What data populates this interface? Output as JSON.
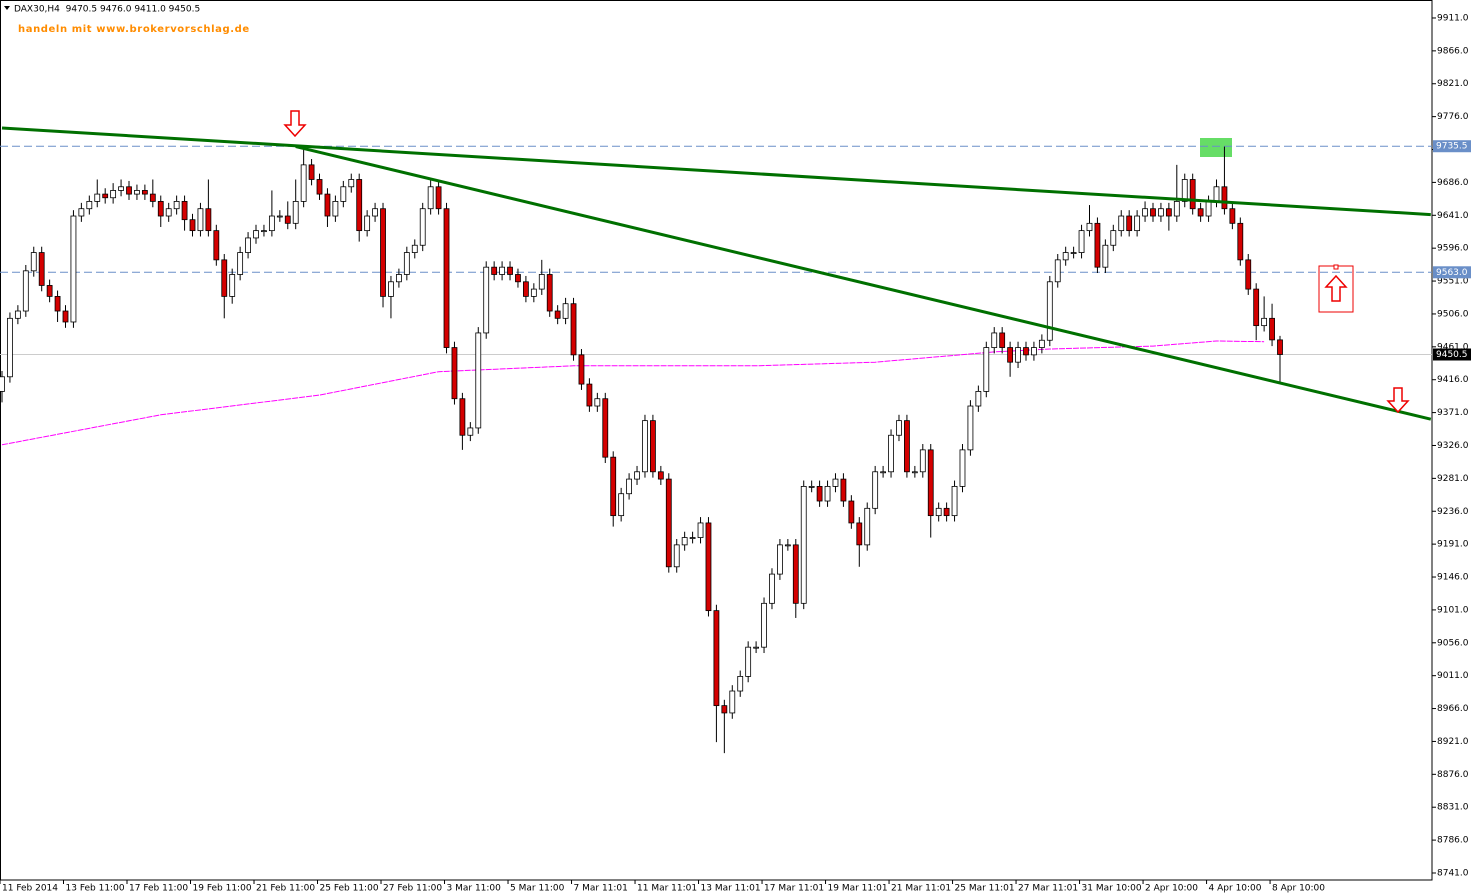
{
  "chart_data": {
    "type": "candlestick",
    "header": "DAX30,H4  9470.5 9476.0 9411.0 9450.5",
    "watermark": "handeln mit www.brokervorschlag.de",
    "up_color": "#ffffff",
    "down_color": "#d40000",
    "ylim": [
      8731.4,
      9935.6
    ],
    "yticks": [
      {
        "value": 9911,
        "label": "9911.0"
      },
      {
        "value": 9866,
        "label": "9866.0"
      },
      {
        "value": 9821,
        "label": "9821.0"
      },
      {
        "value": 9776,
        "label": "9776.0"
      },
      {
        "value": 9731,
        "label": "9731.0"
      },
      {
        "value": 9686,
        "label": "9686.0"
      },
      {
        "value": 9641,
        "label": "9641.0"
      },
      {
        "value": 9596,
        "label": "9596.0"
      },
      {
        "value": 9551,
        "label": "9551.0"
      },
      {
        "value": 9506,
        "label": "9506.0"
      },
      {
        "value": 9461,
        "label": "9461.0"
      },
      {
        "value": 9416,
        "label": "9416.0"
      },
      {
        "value": 9371,
        "label": "9371.0"
      },
      {
        "value": 9326,
        "label": "9326.0"
      },
      {
        "value": 9281,
        "label": "9281.0"
      },
      {
        "value": 9236,
        "label": "9236.0"
      },
      {
        "value": 9191,
        "label": "9191.0"
      },
      {
        "value": 9146,
        "label": "9146.0"
      },
      {
        "value": 9101,
        "label": "9101.0"
      },
      {
        "value": 9056,
        "label": "9056.0"
      },
      {
        "value": 9011,
        "label": "9011.0"
      },
      {
        "value": 8966,
        "label": "8966.0"
      },
      {
        "value": 8921,
        "label": "8921.0"
      },
      {
        "value": 8876,
        "label": "8876.0"
      },
      {
        "value": 8831,
        "label": "8831.0"
      },
      {
        "value": 8786,
        "label": "8786.0"
      },
      {
        "value": 8741,
        "label": "8741.0"
      }
    ],
    "categories": [
      "11 Feb 2014",
      null,
      null,
      null,
      null,
      null,
      null,
      null,
      "13 Feb 11:00",
      null,
      null,
      null,
      null,
      null,
      null,
      null,
      "17 Feb 11:00",
      null,
      null,
      null,
      null,
      null,
      null,
      null,
      "19 Feb 11:00",
      null,
      null,
      null,
      null,
      null,
      null,
      null,
      "21 Feb 11:00",
      null,
      null,
      null,
      null,
      null,
      null,
      null,
      "25 Feb 11:00",
      null,
      null,
      null,
      null,
      null,
      null,
      null,
      "27 Feb 11:00",
      null,
      null,
      null,
      null,
      null,
      null,
      null,
      "3 Mar 11:00",
      null,
      null,
      null,
      null,
      null,
      null,
      null,
      "5 Mar 11:00",
      null,
      null,
      null,
      null,
      null,
      null,
      null,
      "7 Mar 11:01",
      null,
      null,
      null,
      null,
      null,
      null,
      null,
      "11 Mar 11:01",
      null,
      null,
      null,
      null,
      null,
      null,
      null,
      "13 Mar 11:01",
      null,
      null,
      null,
      null,
      null,
      null,
      null,
      "17 Mar 11:01",
      null,
      null,
      null,
      null,
      null,
      null,
      null,
      "19 Mar 11:01",
      null,
      null,
      null,
      null,
      null,
      null,
      null,
      "21 Mar 11:01",
      null,
      null,
      null,
      null,
      null,
      null,
      null,
      "25 Mar 11:01",
      null,
      null,
      null,
      null,
      null,
      null,
      null,
      "27 Mar 11:01",
      null,
      null,
      null,
      null,
      null,
      null,
      null,
      "31 Mar 10:00",
      null,
      null,
      null,
      null,
      null,
      null,
      null,
      "2 Apr 10:00",
      null,
      null,
      null,
      null,
      null,
      null,
      null,
      "4 Apr 10:00",
      null,
      null,
      null,
      null,
      null,
      null,
      null,
      "8 Apr 10:00",
      null
    ],
    "open": [
      9400,
      9420,
      9500,
      9510,
      9565,
      9590,
      9545,
      9530,
      9510,
      9495,
      9640,
      9650,
      9660,
      9670,
      9665,
      9675,
      9680,
      9670,
      9675,
      9670,
      9660,
      9640,
      9650,
      9660,
      9635,
      9620,
      9650,
      9620,
      9580,
      9530,
      9560,
      9590,
      9610,
      9620,
      9620,
      9640,
      9640,
      9630,
      9660,
      9710,
      9690,
      9670,
      9640,
      9660,
      9680,
      9690,
      9620,
      9640,
      9650,
      9530,
      9550,
      9560,
      9590,
      9600,
      9650,
      9680,
      9650,
      9460,
      9390,
      9340,
      9350,
      9480,
      9570,
      9560,
      9570,
      9560,
      9550,
      9530,
      9540,
      9560,
      9510,
      9500,
      9520,
      9450,
      9410,
      9380,
      9390,
      9310,
      9230,
      9260,
      9280,
      9290,
      9360,
      9290,
      9280,
      9160,
      9190,
      9200,
      9200,
      9220,
      9100,
      8970,
      8960,
      8990,
      9010,
      9050,
      9050,
      9110,
      9150,
      9190,
      9190,
      9110,
      9270,
      9270,
      9250,
      9270,
      9280,
      9250,
      9220,
      9190,
      9240,
      9290,
      9290,
      9340,
      9360,
      9290,
      9290,
      9320,
      9230,
      9240,
      9230,
      9270,
      9320,
      9380,
      9400,
      9460,
      9480,
      9460,
      9440,
      9460,
      9450,
      9460,
      9470,
      9550,
      9580,
      9590,
      9590,
      9620,
      9630,
      9570,
      9600,
      9620,
      9640,
      9620,
      9640,
      9650,
      9640,
      9650,
      9640,
      9660,
      9690,
      9650,
      9640,
      9660,
      9680,
      9650,
      9630,
      9580,
      9540,
      9490,
      9500,
      9470.5
    ],
    "high": [
      9428,
      9508,
      9518,
      9573,
      9598,
      9598,
      9553,
      9538,
      9518,
      9648,
      9658,
      9668,
      9690,
      9678,
      9685,
      9690,
      9688,
      9683,
      9683,
      9690,
      9668,
      9658,
      9668,
      9668,
      9643,
      9658,
      9690,
      9628,
      9588,
      9568,
      9598,
      9618,
      9628,
      9628,
      9675,
      9648,
      9660,
      9690,
      9735,
      9718,
      9698,
      9678,
      9668,
      9688,
      9698,
      9698,
      9648,
      9658,
      9658,
      9558,
      9568,
      9598,
      9608,
      9658,
      9690,
      9688,
      9658,
      9468,
      9398,
      9358,
      9488,
      9578,
      9578,
      9578,
      9578,
      9568,
      9558,
      9548,
      9580,
      9568,
      9518,
      9528,
      9528,
      9458,
      9418,
      9398,
      9398,
      9318,
      9268,
      9288,
      9298,
      9368,
      9368,
      9298,
      9288,
      9198,
      9208,
      9208,
      9228,
      9228,
      9108,
      8978,
      8998,
      9018,
      9058,
      9058,
      9118,
      9158,
      9198,
      9198,
      9198,
      9278,
      9278,
      9278,
      9278,
      9288,
      9288,
      9258,
      9228,
      9248,
      9298,
      9298,
      9348,
      9368,
      9368,
      9298,
      9328,
      9328,
      9248,
      9248,
      9278,
      9328,
      9388,
      9408,
      9468,
      9488,
      9488,
      9468,
      9468,
      9468,
      9468,
      9478,
      9558,
      9588,
      9598,
      9598,
      9628,
      9655,
      9638,
      9608,
      9628,
      9648,
      9648,
      9648,
      9660,
      9658,
      9658,
      9658,
      9710,
      9698,
      9698,
      9658,
      9668,
      9690,
      9735,
      9658,
      9638,
      9588,
      9548,
      9530,
      9520,
      9476
    ],
    "low": [
      9385,
      9412,
      9492,
      9502,
      9557,
      9537,
      9522,
      9495,
      9487,
      9487,
      9632,
      9642,
      9652,
      9657,
      9657,
      9667,
      9662,
      9662,
      9662,
      9652,
      9625,
      9632,
      9642,
      9620,
      9612,
      9612,
      9612,
      9572,
      9500,
      9520,
      9552,
      9582,
      9602,
      9612,
      9612,
      9632,
      9622,
      9622,
      9652,
      9682,
      9662,
      9625,
      9632,
      9652,
      9672,
      9605,
      9612,
      9632,
      9515,
      9500,
      9542,
      9552,
      9582,
      9592,
      9642,
      9642,
      9452,
      9382,
      9320,
      9332,
      9342,
      9472,
      9552,
      9552,
      9552,
      9542,
      9522,
      9522,
      9532,
      9502,
      9492,
      9492,
      9442,
      9402,
      9372,
      9372,
      9302,
      9215,
      9222,
      9252,
      9272,
      9282,
      9282,
      9272,
      9152,
      9152,
      9182,
      9192,
      9192,
      9092,
      8920,
      8905,
      8952,
      8982,
      9002,
      9042,
      9042,
      9102,
      9142,
      9182,
      9090,
      9102,
      9262,
      9242,
      9242,
      9262,
      9242,
      9212,
      9160,
      9182,
      9232,
      9282,
      9282,
      9332,
      9282,
      9282,
      9282,
      9200,
      9222,
      9222,
      9222,
      9262,
      9312,
      9372,
      9392,
      9452,
      9452,
      9420,
      9432,
      9442,
      9442,
      9452,
      9462,
      9542,
      9572,
      9582,
      9582,
      9612,
      9562,
      9562,
      9592,
      9612,
      9612,
      9612,
      9632,
      9632,
      9632,
      9620,
      9632,
      9652,
      9642,
      9632,
      9632,
      9652,
      9642,
      9622,
      9572,
      9532,
      9470,
      9482,
      9462,
      9411
    ],
    "close": [
      9420,
      9500,
      9510,
      9565,
      9590,
      9545,
      9530,
      9510,
      9495,
      9640,
      9650,
      9660,
      9670,
      9665,
      9675,
      9680,
      9670,
      9675,
      9670,
      9660,
      9640,
      9650,
      9660,
      9635,
      9620,
      9650,
      9620,
      9580,
      9530,
      9560,
      9590,
      9610,
      9620,
      9620,
      9640,
      9640,
      9630,
      9660,
      9710,
      9690,
      9670,
      9640,
      9660,
      9680,
      9690,
      9620,
      9640,
      9650,
      9530,
      9550,
      9560,
      9590,
      9600,
      9650,
      9680,
      9650,
      9460,
      9390,
      9340,
      9350,
      9480,
      9570,
      9560,
      9570,
      9560,
      9550,
      9530,
      9540,
      9560,
      9510,
      9500,
      9520,
      9450,
      9410,
      9380,
      9390,
      9310,
      9230,
      9260,
      9280,
      9290,
      9360,
      9290,
      9280,
      9160,
      9190,
      9200,
      9200,
      9220,
      9100,
      8970,
      8960,
      8990,
      9010,
      9050,
      9050,
      9110,
      9150,
      9190,
      9190,
      9110,
      9270,
      9270,
      9250,
      9270,
      9280,
      9250,
      9220,
      9190,
      9240,
      9290,
      9290,
      9340,
      9360,
      9290,
      9290,
      9320,
      9230,
      9240,
      9230,
      9270,
      9320,
      9380,
      9400,
      9460,
      9480,
      9460,
      9440,
      9460,
      9450,
      9460,
      9470,
      9550,
      9580,
      9590,
      9590,
      9620,
      9630,
      9570,
      9600,
      9620,
      9640,
      9620,
      9640,
      9650,
      9640,
      9650,
      9640,
      9660,
      9690,
      9650,
      9640,
      9660,
      9680,
      9650,
      9630,
      9580,
      9540,
      9490,
      9500,
      9470.5,
      9450.5
    ],
    "trendlines": [
      {
        "color": "#007000",
        "x": [
          0,
          180
        ],
        "values": [
          9760.5,
          9642
        ]
      },
      {
        "color": "#007000",
        "x": [
          37,
          180
        ],
        "values": [
          9735,
          9362
        ]
      }
    ],
    "ma": {
      "color": "#ff00ff",
      "x": [
        0,
        20,
        40,
        55,
        72,
        95,
        110,
        125,
        132,
        145,
        153,
        159
      ],
      "values": [
        9327,
        9368,
        9395,
        9427,
        9435,
        9435,
        9440,
        9454,
        9458,
        9462,
        9469,
        9468
      ]
    },
    "hlines": [
      {
        "value": 9735.5,
        "label": "9735.5"
      },
      {
        "value": 9563,
        "label": "9563.0"
      }
    ],
    "price_line": {
      "value": 9450.5,
      "label": "9450.5"
    }
  }
}
